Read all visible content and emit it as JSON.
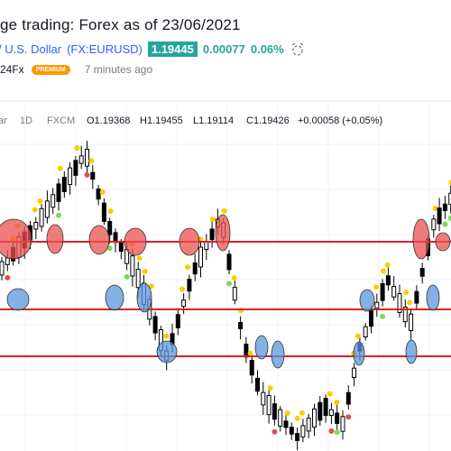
{
  "header": {
    "title": "ge trading: Forex as of 23/06/2021",
    "instrument": "/ U.S. Dollar",
    "symbol": "(FX:EURUSD)",
    "price": "1.19445",
    "change": "0.00077",
    "change_percent": "0.06%",
    "author": "24Fx",
    "badge": "PREMIUM",
    "time": "7 minutes ago"
  },
  "chart_legend": {
    "symbol": "ar",
    "interval": "1D",
    "source": "FXCM",
    "open": "O1.19368",
    "high": "H1.19455",
    "low": "L1.19114",
    "close": "C1.19426",
    "change": "+0.00058 (+0.05%)"
  }
}
